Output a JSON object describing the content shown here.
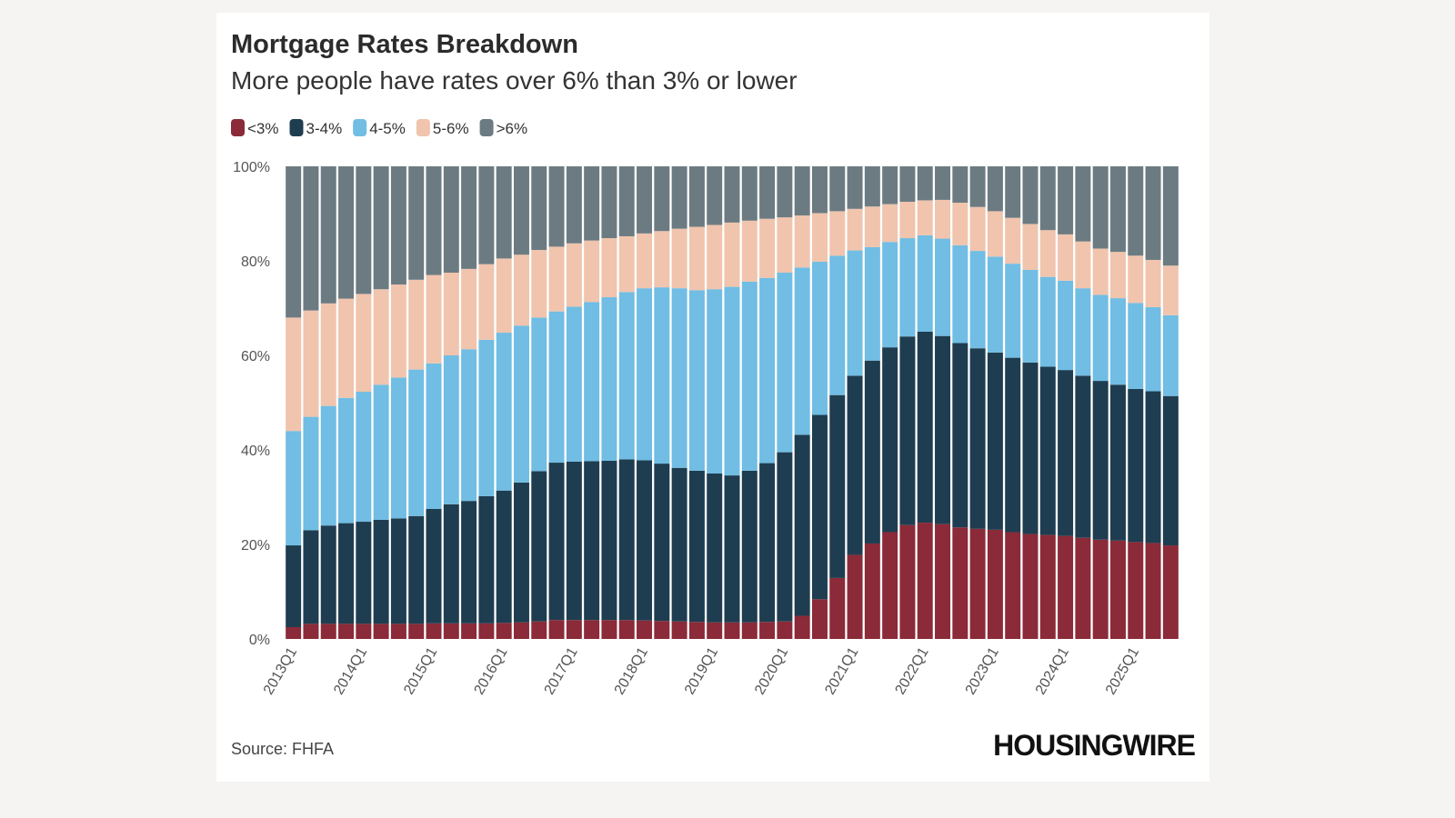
{
  "chart_data": {
    "type": "stacked-bar",
    "title": "Mortgage Rates Breakdown",
    "subtitle": "More people have rates over 6% than 3% or lower",
    "source": "Source: FHFA",
    "brand": "HOUSINGWIRE",
    "categories": [
      "2013Q1",
      null,
      null,
      null,
      "2014Q1",
      null,
      null,
      null,
      "2015Q1",
      null,
      null,
      null,
      "2016Q1",
      null,
      null,
      null,
      "2017Q1",
      null,
      null,
      null,
      "2018Q1",
      null,
      null,
      null,
      "2019Q1",
      null,
      null,
      null,
      "2020Q1",
      null,
      null,
      null,
      "2021Q1",
      null,
      null,
      null,
      "2022Q1",
      null,
      null,
      null,
      "2023Q1",
      null,
      null,
      null,
      "2024Q1",
      null,
      null,
      null,
      "2025Q1",
      null,
      null
    ],
    "series": [
      {
        "name": "<3%",
        "color": "#8b2a38",
        "values": [
          2.5,
          3.2,
          3.2,
          3.2,
          3.2,
          3.2,
          3.2,
          3.2,
          3.3,
          3.3,
          3.3,
          3.3,
          3.4,
          3.5,
          3.7,
          4,
          4,
          4,
          4,
          4,
          3.9,
          3.8,
          3.7,
          3.6,
          3.5,
          3.5,
          3.5,
          3.6,
          3.7,
          4.9,
          8.4,
          12.9,
          17.8,
          20.2,
          22.6,
          24.1,
          24.6,
          24.3,
          23.6,
          23.3,
          23.1,
          22.6,
          22.2,
          22,
          21.8,
          21.4,
          21,
          20.8,
          20.5,
          20.3,
          19.8
        ]
      },
      {
        "name": "3-4%",
        "color": "#1f3d50",
        "values": [
          17.3,
          19.8,
          20.8,
          21.3,
          21.6,
          22,
          22.3,
          22.8,
          24.2,
          25.2,
          25.9,
          26.9,
          28,
          29.6,
          31.8,
          33.3,
          33.5,
          33.6,
          33.7,
          34,
          33.9,
          33.3,
          32.5,
          32,
          31.5,
          31.1,
          32.1,
          33.6,
          35.8,
          38.3,
          39,
          38.7,
          37.9,
          38.7,
          39.1,
          39.9,
          40.4,
          39.8,
          39,
          38.2,
          37.5,
          36.9,
          36.3,
          35.6,
          35.1,
          34.3,
          33.6,
          33,
          32.4,
          32.1,
          31.6
        ]
      },
      {
        "name": "4-5%",
        "color": "#71bde3",
        "values": [
          24.2,
          24,
          25.3,
          26.5,
          27.5,
          28.6,
          29.8,
          31,
          30.8,
          31.5,
          32.1,
          33.1,
          33.4,
          33.2,
          32.5,
          32,
          32.8,
          33.7,
          34.6,
          35.4,
          36.4,
          37.3,
          38,
          38.2,
          39,
          39.9,
          40,
          39.2,
          38,
          35.4,
          32.4,
          29.5,
          26.5,
          24,
          22.3,
          20.8,
          20.4,
          20.6,
          20.7,
          20.6,
          20.3,
          19.9,
          19.6,
          19,
          18.9,
          18.5,
          18.2,
          18.3,
          18.2,
          17.8,
          17.1
        ]
      },
      {
        "name": "5-6%",
        "color": "#f0c4ad",
        "values": [
          24,
          22.5,
          21.7,
          21,
          20.7,
          20.2,
          19.7,
          19,
          18.7,
          17.5,
          17,
          16,
          15.7,
          15,
          14.3,
          13.7,
          13.4,
          13,
          12.5,
          11.8,
          11.6,
          11.9,
          12.6,
          13.4,
          13.6,
          13.6,
          12.9,
          12.5,
          11.7,
          11,
          10.3,
          9.4,
          8.8,
          8.6,
          8,
          7.7,
          7.4,
          8.2,
          9,
          9.3,
          9.6,
          9.7,
          9.7,
          9.9,
          9.8,
          9.9,
          9.8,
          9.8,
          10,
          10,
          10.5
        ]
      },
      {
        "name": ">6%",
        "color": "#6c7b82",
        "values": [
          32,
          30.5,
          29,
          28,
          27,
          26,
          25,
          24,
          23,
          22.5,
          21.7,
          20.7,
          19.5,
          18.7,
          17.7,
          17,
          16.3,
          15.7,
          15.2,
          14.8,
          14.2,
          13.7,
          13.2,
          12.8,
          12.4,
          11.9,
          11.5,
          11.1,
          10.8,
          10.4,
          9.9,
          9.5,
          9,
          8.5,
          8,
          7.5,
          7.2,
          7.1,
          7.7,
          8.6,
          9.5,
          10.9,
          12.2,
          13.5,
          14.4,
          15.9,
          17.4,
          18.1,
          18.9,
          19.8,
          21
        ]
      }
    ],
    "ylim": [
      0,
      100
    ],
    "yticks": [
      {
        "value": 0,
        "label": "0%"
      },
      {
        "value": 20,
        "label": "20%"
      },
      {
        "value": 40,
        "label": "40%"
      },
      {
        "value": 60,
        "label": "60%"
      },
      {
        "value": 80,
        "label": "80%"
      },
      {
        "value": 100,
        "label": "100%"
      }
    ],
    "grid": false
  }
}
